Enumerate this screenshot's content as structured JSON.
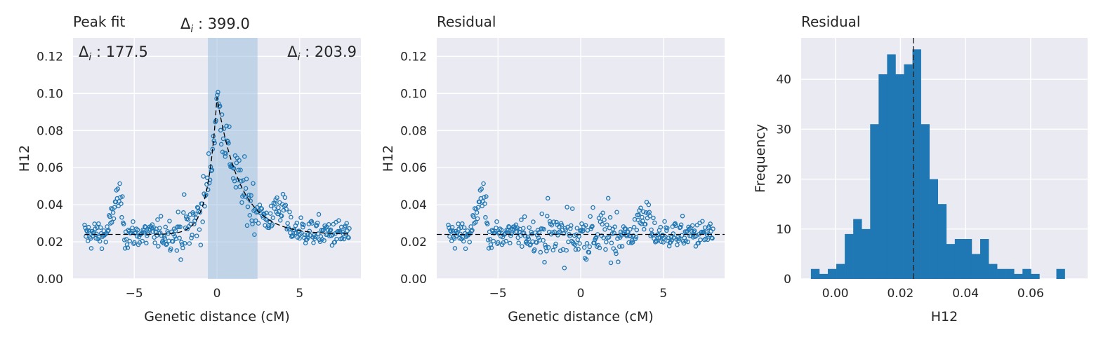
{
  "chart_data": [
    {
      "type": "scatter",
      "title": "Peak fit",
      "xlabel": "Genetic distance (cM)",
      "ylabel": "H12",
      "xlim": [
        -8.7,
        8.7
      ],
      "ylim": [
        0,
        0.13
      ],
      "xticks": [
        -5,
        0,
        5
      ],
      "xtick_labels": [
        "−5",
        "0",
        "5"
      ],
      "yticks": [
        0,
        0.02,
        0.04,
        0.06,
        0.08,
        0.1,
        0.12
      ],
      "ytick_labels": [
        "0.00",
        "0.02",
        "0.04",
        "0.06",
        "0.08",
        "0.10",
        "0.12"
      ],
      "grid": true,
      "background": "#eaeaf2",
      "point_color": "#1f77b4",
      "shaded_region": {
        "x0": -0.55,
        "x1": 2.45,
        "color": "#9ec0de"
      },
      "baseline": 0.024,
      "fit_peak": 0.098,
      "annotations": [
        {
          "label": "Δ",
          "sub": "i",
          "value": " : 177.5",
          "position": "top-left"
        },
        {
          "label": "Δ",
          "sub": "i",
          "value": " : 399.0",
          "position": "above-center"
        },
        {
          "label": "Δ",
          "sub": "i",
          "value": " : 203.9",
          "position": "top-right"
        }
      ]
    },
    {
      "type": "scatter",
      "title": "Residual",
      "xlabel": "Genetic distance (cM)",
      "ylabel": "H12",
      "xlim": [
        -8.7,
        8.7
      ],
      "ylim": [
        0,
        0.13
      ],
      "xticks": [
        -5,
        0,
        5
      ],
      "xtick_labels": [
        "−5",
        "0",
        "5"
      ],
      "yticks": [
        0,
        0.02,
        0.04,
        0.06,
        0.08,
        0.1,
        0.12
      ],
      "ytick_labels": [
        "0.00",
        "0.02",
        "0.04",
        "0.06",
        "0.08",
        "0.10",
        "0.12"
      ],
      "grid": true,
      "background": "#eaeaf2",
      "point_color": "#1f77b4",
      "reference_line": 0.024
    },
    {
      "type": "bar",
      "title": "Residual",
      "xlabel": "H12",
      "ylabel": "Frequency",
      "xlim": [
        -0.0105,
        0.0775
      ],
      "ylim": [
        0,
        48.3
      ],
      "xticks": [
        0,
        0.02,
        0.04,
        0.06
      ],
      "xtick_labels": [
        "0.00",
        "0.02",
        "0.04",
        "0.06"
      ],
      "yticks": [
        0,
        10,
        20,
        30,
        40
      ],
      "ytick_labels": [
        "0",
        "10",
        "20",
        "30",
        "40"
      ],
      "grid": true,
      "background": "#eaeaf2",
      "bar_color": "#1f77b4",
      "reference_line": 0.024,
      "bin_start": -0.0075,
      "bin_width": 0.0026,
      "values": [
        2,
        1,
        2,
        3,
        9,
        12,
        10,
        31,
        41,
        45,
        41,
        43,
        46,
        31,
        20,
        15,
        7,
        8,
        8,
        5,
        8,
        3,
        2,
        2,
        1,
        2,
        1,
        0,
        0,
        2
      ]
    }
  ]
}
